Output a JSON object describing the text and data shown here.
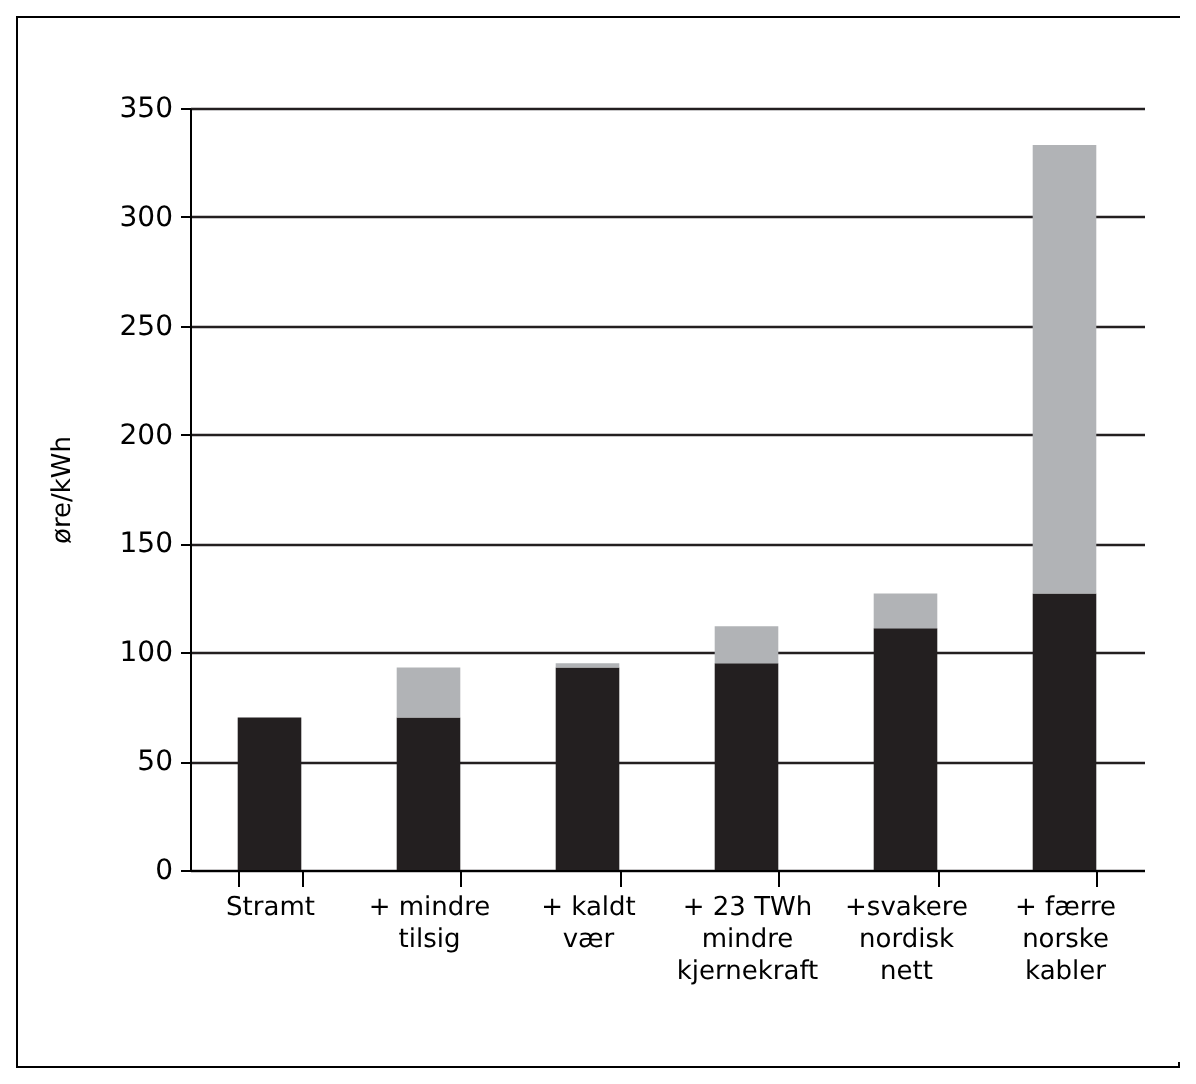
{
  "chart_data": {
    "type": "bar",
    "ylabel": "øre/kWh",
    "categories": [
      "Stramt",
      "+ mindre tilsig",
      "+ kaldt vær",
      "+ 23 TWh mindre kjernekraft",
      "+svakere nordisk nett",
      "+ færre norske kabler"
    ],
    "stacked": true,
    "series": [
      {
        "color": "#231f20",
        "values": [
          70,
          70,
          93,
          95,
          111,
          127
        ]
      },
      {
        "color": "#b1b3b6",
        "values": [
          null,
          23,
          2,
          17,
          16,
          206
        ]
      }
    ],
    "ylim": [
      0,
      350
    ],
    "yticks": [
      0,
      50,
      100,
      150,
      200,
      250,
      300,
      350
    ],
    "grid": "y"
  }
}
